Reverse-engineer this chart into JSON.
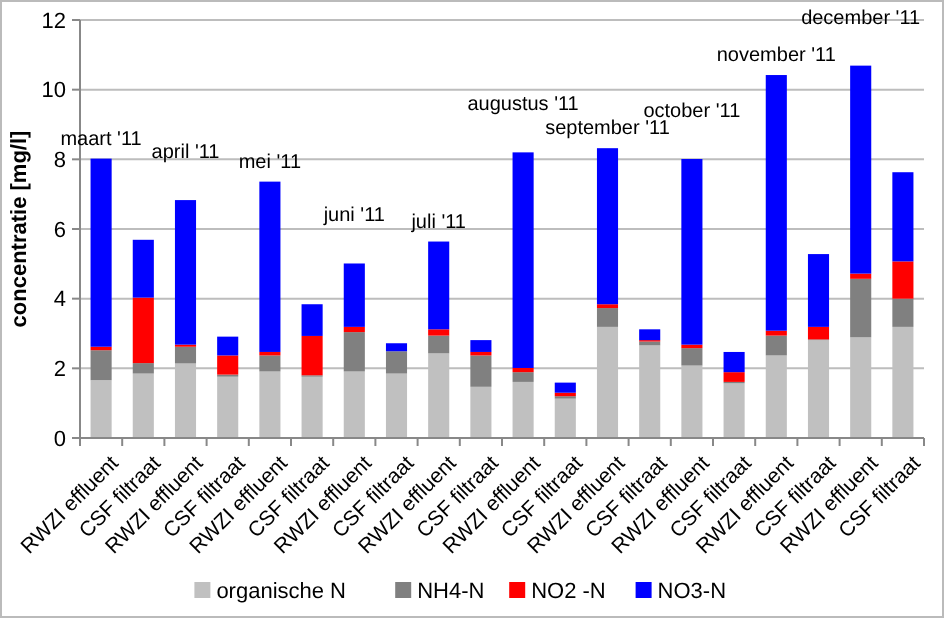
{
  "chart_data": {
    "type": "bar",
    "stacked": true,
    "ylabel": "concentratie [mg/l]",
    "categories": [
      "RWZI effluent",
      "CSF filtraat",
      "RWZI effluent",
      "CSF filtraat",
      "RWZI effluent",
      "CSF filtraat",
      "RWZI effluent",
      "CSF filtraat",
      "RWZI effluent",
      "CSF filtraat",
      "RWZI effluent",
      "CSF filtraat",
      "RWZI effluent",
      "CSF filtraat",
      "RWZI effluent",
      "CSF filtraat",
      "RWZI effluent",
      "CSF filtraat",
      "RWZI effluent",
      "CSF filtraat"
    ],
    "series": [
      {
        "name": "organische N",
        "color": "#c0c0c0",
        "values": [
          1.66,
          1.85,
          2.14,
          1.76,
          1.91,
          1.76,
          1.91,
          1.85,
          2.43,
          1.47,
          1.61,
          1.13,
          3.19,
          2.66,
          2.08,
          1.57,
          2.37,
          2.81,
          2.89,
          3.19
        ]
      },
      {
        "name": "NH4-N",
        "color": "#808080",
        "values": [
          0.86,
          0.3,
          0.48,
          0.06,
          0.46,
          0.04,
          1.13,
          0.64,
          0.51,
          0.9,
          0.28,
          0.07,
          0.54,
          0.11,
          0.5,
          0.04,
          0.57,
          0.02,
          1.68,
          0.81
        ]
      },
      {
        "name": "NO2 -N",
        "color": "#ff0000",
        "values": [
          0.1,
          1.88,
          0.06,
          0.55,
          0.1,
          1.13,
          0.15,
          0,
          0.18,
          0.1,
          0.12,
          0.1,
          0.11,
          0.04,
          0.1,
          0.28,
          0.14,
          0.36,
          0.15,
          1.07
        ]
      },
      {
        "name": "NO3-N",
        "color": "#0000ff",
        "values": [
          5.4,
          1.66,
          4.15,
          0.54,
          4.89,
          0.91,
          1.82,
          0.23,
          2.52,
          0.34,
          6.19,
          0.29,
          4.48,
          0.31,
          5.33,
          0.58,
          7.34,
          2.09,
          5.97,
          2.56
        ]
      }
    ],
    "annotations": [
      "maart '11",
      "april '11",
      "mei '11",
      "juni '11",
      "juli '11",
      "augustus '11",
      "september '11",
      "october '11",
      "november '11",
      "december '11"
    ],
    "ylim": [
      0,
      12
    ],
    "yticks": [
      0,
      2,
      4,
      6,
      8,
      10,
      12
    ],
    "grid": "y",
    "legend": "bottom"
  }
}
